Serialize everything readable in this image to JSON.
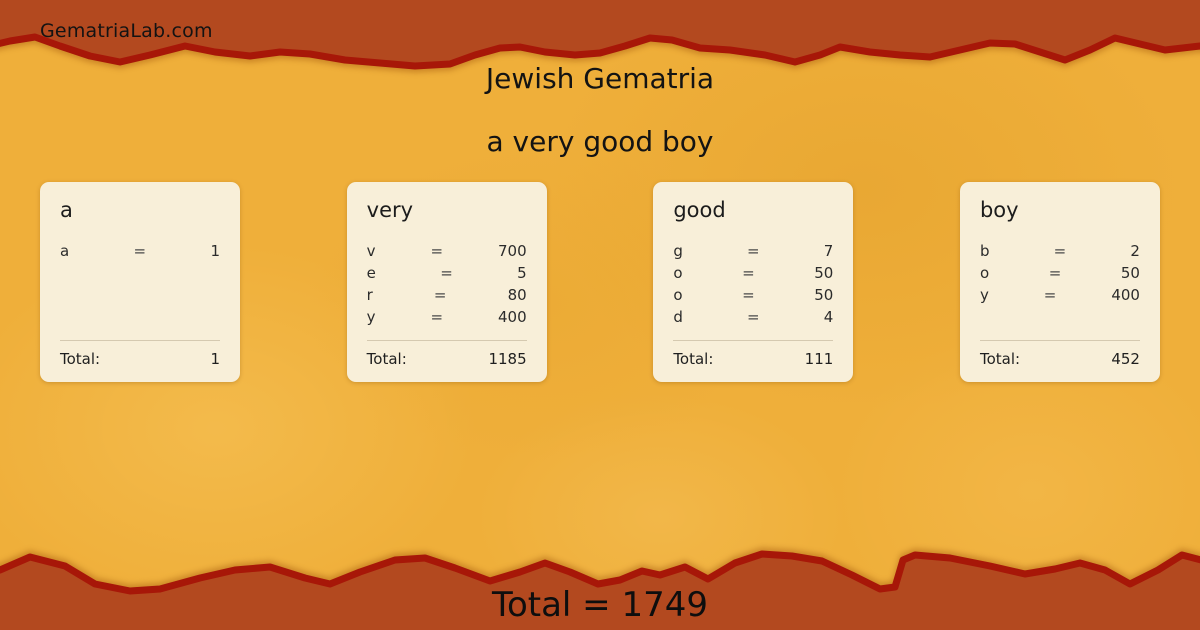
{
  "brand": "GematriaLab.com",
  "header": {
    "title": "Jewish Gematria",
    "phrase": "a very good boy"
  },
  "equals_sign": "=",
  "cards": [
    {
      "word": "a",
      "rows": [
        {
          "letter": "a",
          "value": "1"
        }
      ],
      "total_label": "Total:",
      "total": "1"
    },
    {
      "word": "very",
      "rows": [
        {
          "letter": "v",
          "value": "700"
        },
        {
          "letter": "e",
          "value": "5"
        },
        {
          "letter": "r",
          "value": "80"
        },
        {
          "letter": "y",
          "value": "400"
        }
      ],
      "total_label": "Total:",
      "total": "1185"
    },
    {
      "word": "good",
      "rows": [
        {
          "letter": "g",
          "value": "7"
        },
        {
          "letter": "o",
          "value": "50"
        },
        {
          "letter": "o",
          "value": "50"
        },
        {
          "letter": "d",
          "value": "4"
        }
      ],
      "total_label": "Total:",
      "total": "111"
    },
    {
      "word": "boy",
      "rows": [
        {
          "letter": "b",
          "value": "2"
        },
        {
          "letter": "o",
          "value": "50"
        },
        {
          "letter": "y",
          "value": "400"
        }
      ],
      "total_label": "Total:",
      "total": "452"
    }
  ],
  "footer": {
    "grand_total_text": "Total = 1749"
  },
  "colors": {
    "background_yellow": "#efaf3a",
    "banner_orange": "#b3491f",
    "torn_edge_red": "#a71708",
    "card_cream": "#f8efd9",
    "text_black": "#131313"
  }
}
